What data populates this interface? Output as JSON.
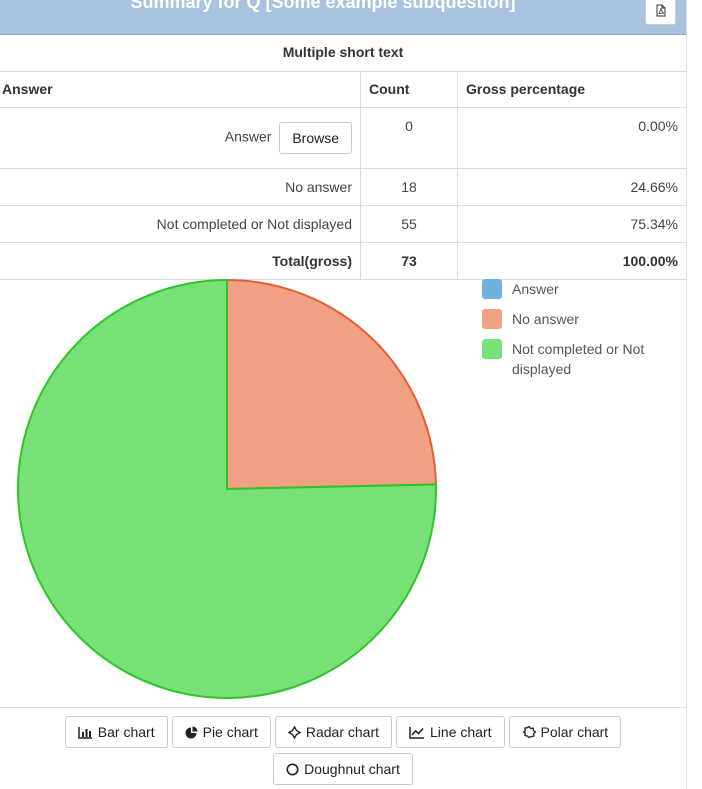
{
  "header": {
    "title": "Summary for Q [Some example subquestion]"
  },
  "subtitle": "Multiple short text",
  "table": {
    "columns": [
      "Answer",
      "Count",
      "Gross percentage"
    ],
    "rows": [
      {
        "label": "Answer",
        "count": "0",
        "pct": "0.00%",
        "button": "Browse"
      },
      {
        "label": "No answer",
        "count": "18",
        "pct": "24.66%"
      },
      {
        "label": "Not completed or Not displayed",
        "count": "55",
        "pct": "75.34%"
      }
    ],
    "total": {
      "label": "Total(gross)",
      "count": "73",
      "pct": "100.00%"
    }
  },
  "chart_data": {
    "type": "pie",
    "categories": [
      "Answer",
      "No answer",
      "Not completed or Not displayed"
    ],
    "values": [
      0,
      18,
      55
    ],
    "colors": [
      "#70b1e0",
      "#f0a083",
      "#77e076"
    ],
    "border_colors": [
      "#3f8fd0",
      "#e85d33",
      "#2ec42a"
    ],
    "legend_position": "top-right"
  },
  "legend": {
    "items": [
      {
        "label": "Answer",
        "color": "#70b1e0"
      },
      {
        "label": "No answer",
        "color": "#f0a083"
      },
      {
        "label": "Not completed or Not displayed",
        "color": "#77e076"
      }
    ]
  },
  "chart_buttons": {
    "bar": "Bar chart",
    "pie": "Pie chart",
    "radar": "Radar chart",
    "line": "Line chart",
    "polar": "Polar chart",
    "doughnut": "Doughnut chart"
  },
  "icons": [
    "pdf-icon",
    "bar-chart-icon",
    "pie-chart-icon",
    "radar-chart-icon",
    "line-chart-icon",
    "polar-chart-icon",
    "doughnut-chart-icon"
  ]
}
